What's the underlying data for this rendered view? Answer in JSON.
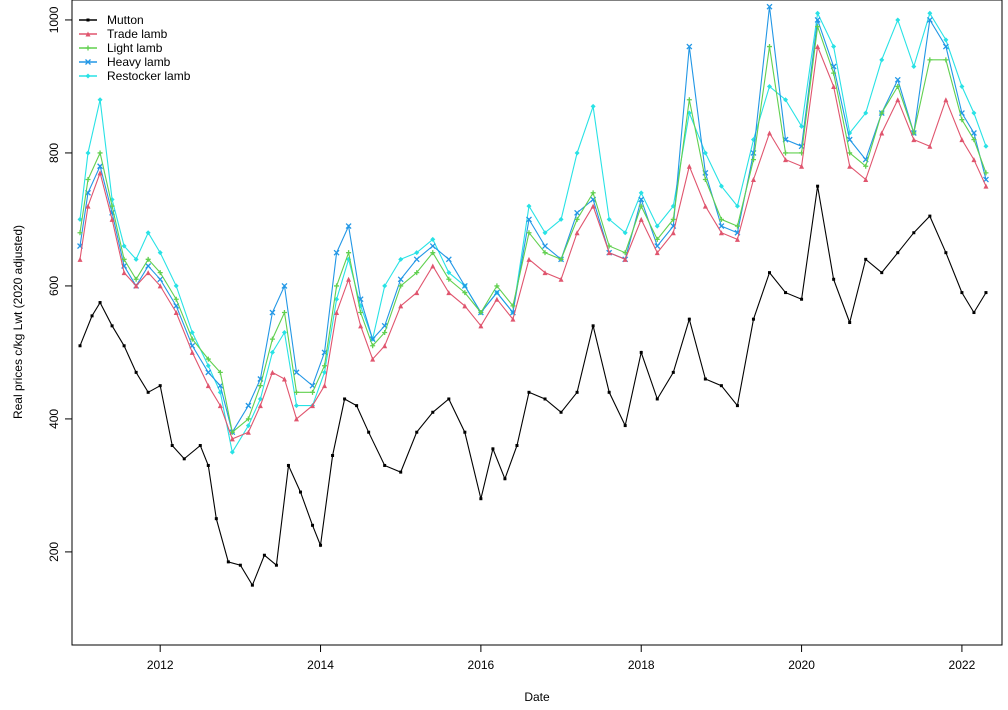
{
  "chart_data": {
    "type": "line",
    "title": "",
    "xlabel": "Date",
    "ylabel": "Real prices c/kg Lwt (2020 adjusted)",
    "xlim": [
      2010.9,
      2022.5
    ],
    "ylim": [
      60,
      1030
    ],
    "x_ticks": [
      2012,
      2014,
      2016,
      2018,
      2020,
      2022
    ],
    "x_tick_labels": [
      "2012",
      "2014",
      "2016",
      "2018",
      "2020",
      "2022"
    ],
    "y_ticks": [
      200,
      400,
      600,
      800,
      1000
    ],
    "y_tick_labels": [
      "200",
      "400",
      "600",
      "800",
      "1000"
    ],
    "grid": false,
    "legend_position": "top-left",
    "series": [
      {
        "name": "Mutton",
        "color": "#000000",
        "marker": "square",
        "x": [
          2011.0,
          2011.15,
          2011.25,
          2011.4,
          2011.55,
          2011.7,
          2011.85,
          2012.0,
          2012.15,
          2012.3,
          2012.5,
          2012.6,
          2012.7,
          2012.85,
          2013.0,
          2013.15,
          2013.3,
          2013.45,
          2013.6,
          2013.75,
          2013.9,
          2014.0,
          2014.15,
          2014.3,
          2014.45,
          2014.6,
          2014.8,
          2015.0,
          2015.2,
          2015.4,
          2015.6,
          2015.8,
          2016.0,
          2016.15,
          2016.3,
          2016.45,
          2016.6,
          2016.8,
          2017.0,
          2017.2,
          2017.4,
          2017.6,
          2017.8,
          2018.0,
          2018.2,
          2018.4,
          2018.6,
          2018.8,
          2019.0,
          2019.2,
          2019.4,
          2019.6,
          2019.8,
          2020.0,
          2020.2,
          2020.4,
          2020.6,
          2020.8,
          2021.0,
          2021.2,
          2021.4,
          2021.6,
          2021.8,
          2022.0,
          2022.15,
          2022.3
        ],
        "y": [
          510,
          555,
          575,
          540,
          510,
          470,
          440,
          450,
          360,
          340,
          360,
          330,
          250,
          185,
          180,
          150,
          195,
          180,
          330,
          290,
          240,
          210,
          345,
          430,
          420,
          380,
          330,
          320,
          380,
          410,
          430,
          380,
          280,
          355,
          310,
          360,
          440,
          430,
          410,
          440,
          540,
          440,
          390,
          500,
          430,
          470,
          550,
          460,
          450,
          420,
          550,
          620,
          590,
          580,
          750,
          610,
          545,
          640,
          620,
          650,
          680,
          705,
          650,
          590,
          560,
          590
        ]
      },
      {
        "name": "Trade lamb",
        "color": "#e0556e",
        "marker": "triangle",
        "x": [
          2011.0,
          2011.1,
          2011.25,
          2011.4,
          2011.55,
          2011.7,
          2011.85,
          2012.0,
          2012.2,
          2012.4,
          2012.6,
          2012.75,
          2012.9,
          2013.1,
          2013.25,
          2013.4,
          2013.55,
          2013.7,
          2013.9,
          2014.05,
          2014.2,
          2014.35,
          2014.5,
          2014.65,
          2014.8,
          2015.0,
          2015.2,
          2015.4,
          2015.6,
          2015.8,
          2016.0,
          2016.2,
          2016.4,
          2016.6,
          2016.8,
          2017.0,
          2017.2,
          2017.4,
          2017.6,
          2017.8,
          2018.0,
          2018.2,
          2018.4,
          2018.6,
          2018.8,
          2019.0,
          2019.2,
          2019.4,
          2019.6,
          2019.8,
          2020.0,
          2020.2,
          2020.4,
          2020.6,
          2020.8,
          2021.0,
          2021.2,
          2021.4,
          2021.6,
          2021.8,
          2022.0,
          2022.15,
          2022.3
        ],
        "y": [
          640,
          720,
          770,
          700,
          620,
          600,
          620,
          600,
          560,
          500,
          450,
          420,
          370,
          380,
          420,
          470,
          460,
          400,
          420,
          450,
          560,
          610,
          540,
          490,
          510,
          570,
          590,
          630,
          590,
          570,
          540,
          580,
          550,
          640,
          620,
          610,
          680,
          720,
          650,
          640,
          700,
          650,
          680,
          780,
          720,
          680,
          670,
          760,
          830,
          790,
          780,
          960,
          900,
          780,
          760,
          830,
          880,
          820,
          810,
          880,
          820,
          790,
          750
        ]
      },
      {
        "name": "Light lamb",
        "color": "#61d04f",
        "marker": "plus",
        "x": [
          2011.0,
          2011.1,
          2011.25,
          2011.4,
          2011.55,
          2011.7,
          2011.85,
          2012.0,
          2012.2,
          2012.4,
          2012.6,
          2012.75,
          2012.9,
          2013.1,
          2013.25,
          2013.4,
          2013.55,
          2013.7,
          2013.9,
          2014.05,
          2014.2,
          2014.35,
          2014.5,
          2014.65,
          2014.8,
          2015.0,
          2015.2,
          2015.4,
          2015.6,
          2015.8,
          2016.0,
          2016.2,
          2016.4,
          2016.6,
          2016.8,
          2017.0,
          2017.2,
          2017.4,
          2017.6,
          2017.8,
          2018.0,
          2018.2,
          2018.4,
          2018.6,
          2018.8,
          2019.0,
          2019.2,
          2019.4,
          2019.6,
          2019.8,
          2020.0,
          2020.2,
          2020.4,
          2020.6,
          2020.8,
          2021.0,
          2021.2,
          2021.4,
          2021.6,
          2021.8,
          2022.0,
          2022.15,
          2022.3
        ],
        "y": [
          680,
          760,
          800,
          720,
          640,
          610,
          640,
          620,
          580,
          520,
          490,
          470,
          380,
          400,
          450,
          520,
          560,
          440,
          440,
          480,
          600,
          650,
          560,
          510,
          530,
          600,
          620,
          650,
          610,
          590,
          560,
          600,
          570,
          680,
          650,
          640,
          700,
          740,
          660,
          650,
          720,
          670,
          700,
          880,
          760,
          700,
          690,
          790,
          960,
          800,
          800,
          990,
          920,
          800,
          780,
          860,
          900,
          830,
          940,
          940,
          850,
          820,
          770
        ]
      },
      {
        "name": "Heavy lamb",
        "color": "#2297e6",
        "marker": "cross",
        "x": [
          2011.0,
          2011.1,
          2011.25,
          2011.4,
          2011.55,
          2011.7,
          2011.85,
          2012.0,
          2012.2,
          2012.4,
          2012.6,
          2012.75,
          2012.9,
          2013.1,
          2013.25,
          2013.4,
          2013.55,
          2013.7,
          2013.9,
          2014.05,
          2014.2,
          2014.35,
          2014.5,
          2014.65,
          2014.8,
          2015.0,
          2015.2,
          2015.4,
          2015.6,
          2015.8,
          2016.0,
          2016.2,
          2016.4,
          2016.6,
          2016.8,
          2017.0,
          2017.2,
          2017.4,
          2017.6,
          2017.8,
          2018.0,
          2018.2,
          2018.4,
          2018.6,
          2018.8,
          2019.0,
          2019.2,
          2019.4,
          2019.6,
          2019.8,
          2020.0,
          2020.2,
          2020.4,
          2020.6,
          2020.8,
          2021.0,
          2021.2,
          2021.4,
          2021.6,
          2021.8,
          2022.0,
          2022.15,
          2022.3
        ],
        "y": [
          660,
          740,
          780,
          710,
          630,
          600,
          630,
          610,
          570,
          510,
          470,
          450,
          380,
          420,
          460,
          560,
          600,
          470,
          450,
          500,
          650,
          690,
          580,
          520,
          540,
          610,
          640,
          660,
          640,
          600,
          560,
          590,
          560,
          700,
          660,
          640,
          710,
          730,
          650,
          640,
          730,
          660,
          690,
          960,
          770,
          690,
          680,
          800,
          1020,
          820,
          810,
          1000,
          930,
          820,
          790,
          860,
          910,
          830,
          1000,
          960,
          860,
          830,
          760
        ]
      },
      {
        "name": "Restocker lamb",
        "color": "#28e2e5",
        "marker": "diamond",
        "x": [
          2011.0,
          2011.1,
          2011.25,
          2011.4,
          2011.55,
          2011.7,
          2011.85,
          2012.0,
          2012.2,
          2012.4,
          2012.6,
          2012.75,
          2012.9,
          2013.1,
          2013.25,
          2013.4,
          2013.55,
          2013.7,
          2013.9,
          2014.05,
          2014.2,
          2014.35,
          2014.5,
          2014.65,
          2014.8,
          2015.0,
          2015.2,
          2015.4,
          2015.6,
          2015.8,
          2016.0,
          2016.2,
          2016.4,
          2016.6,
          2016.8,
          2017.0,
          2017.2,
          2017.4,
          2017.6,
          2017.8,
          2018.0,
          2018.2,
          2018.4,
          2018.6,
          2018.8,
          2019.0,
          2019.2,
          2019.4,
          2019.6,
          2019.8,
          2020.0,
          2020.2,
          2020.4,
          2020.6,
          2020.8,
          2021.0,
          2021.2,
          2021.4,
          2021.6,
          2021.8,
          2022.0,
          2022.15,
          2022.3
        ],
        "y": [
          700,
          800,
          880,
          730,
          660,
          640,
          680,
          650,
          600,
          530,
          480,
          440,
          350,
          390,
          430,
          500,
          530,
          420,
          420,
          470,
          580,
          640,
          570,
          520,
          600,
          640,
          650,
          670,
          620,
          600,
          560,
          590,
          560,
          720,
          680,
          700,
          800,
          870,
          700,
          680,
          740,
          690,
          720,
          860,
          800,
          750,
          720,
          820,
          900,
          880,
          840,
          1010,
          960,
          830,
          860,
          940,
          1000,
          930,
          1010,
          970,
          900,
          860,
          810
        ]
      }
    ]
  }
}
